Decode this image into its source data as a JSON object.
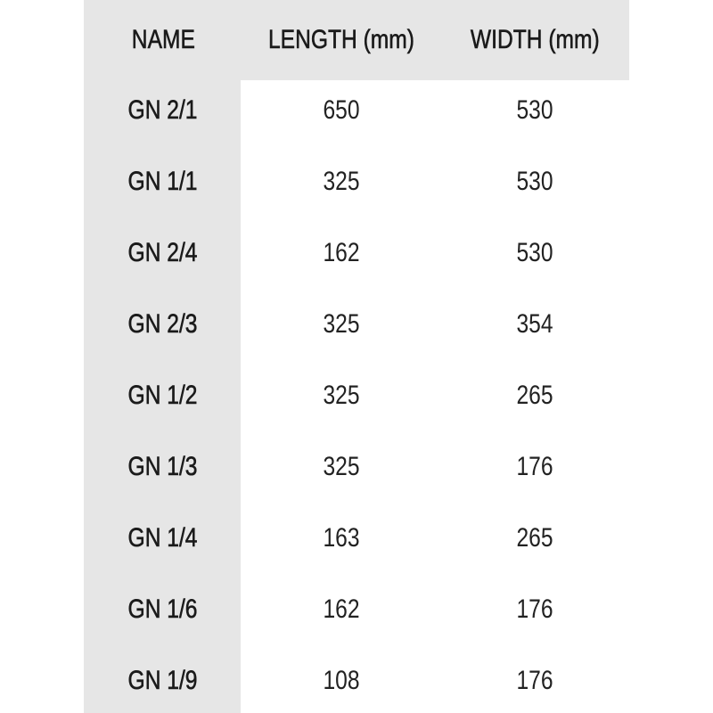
{
  "table": {
    "headers": [
      "NAME",
      "LENGTH (mm)",
      "WIDTH (mm)"
    ],
    "rows": [
      {
        "name": "GN 2/1",
        "length": "650",
        "width": "530"
      },
      {
        "name": "GN 1/1",
        "length": "325",
        "width": "530"
      },
      {
        "name": "GN 2/4",
        "length": "162",
        "width": "530"
      },
      {
        "name": "GN 2/3",
        "length": "325",
        "width": "354"
      },
      {
        "name": "GN 1/2",
        "length": "325",
        "width": "265"
      },
      {
        "name": "GN 1/3",
        "length": "325",
        "width": "176"
      },
      {
        "name": "GN 1/4",
        "length": "163",
        "width": "265"
      },
      {
        "name": "GN 1/6",
        "length": "162",
        "width": "176"
      },
      {
        "name": "GN 1/9",
        "length": "108",
        "width": "176"
      }
    ],
    "colors": {
      "header_background": "#e6e6e6",
      "text": "#1a1a1a",
      "body_background": "#ffffff"
    }
  }
}
